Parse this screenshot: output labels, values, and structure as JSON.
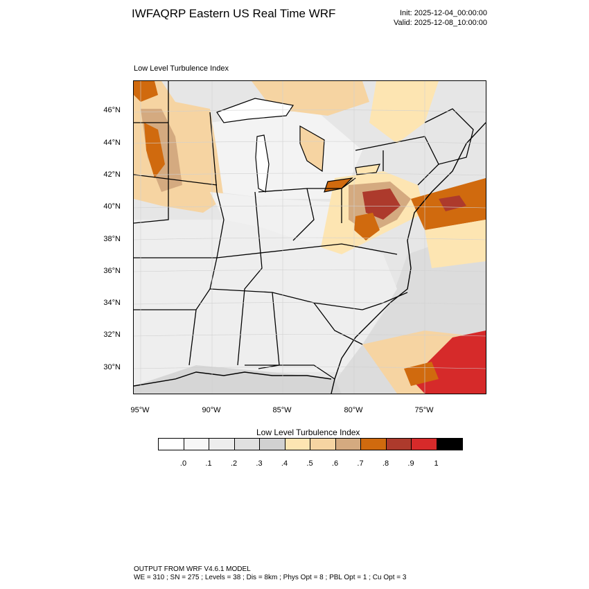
{
  "header": {
    "title": "IWFAQRP Eastern US Real Time WRF",
    "init": "Init: 2025-12-04_00:00:00",
    "valid": "Valid: 2025-12-08_10:00:00"
  },
  "map": {
    "subtitle": "Low Level Turbulence Index",
    "lat_labels": [
      "46°N",
      "44°N",
      "42°N",
      "40°N",
      "38°N",
      "36°N",
      "34°N",
      "32°N",
      "30°N"
    ],
    "lon_labels": [
      "95°W",
      "90°W",
      "85°W",
      "80°W",
      "75°W"
    ]
  },
  "colorbar": {
    "title": "Low Level Turbulence Index",
    "colors": [
      "#ffffff",
      "#f7f7f7",
      "#ededed",
      "#e0e0e0",
      "#d1d1d1",
      "#fde5b2",
      "#f6d4a2",
      "#d4aa80",
      "#d06a0e",
      "#ad3a2c",
      "#d62a2a",
      "#000000"
    ],
    "tick_labels": [
      ".0",
      ".1",
      ".2",
      ".3",
      ".4",
      ".5",
      ".6",
      ".7",
      ".8",
      ".9",
      "1"
    ]
  },
  "footer": {
    "line1": "OUTPUT FROM WRF V4.6.1 MODEL",
    "line2": "WE = 310 ; SN = 275 ; Levels = 38 ; Dis = 8km ; Phys Opt = 8 ; PBL Opt = 1 ; Cu Opt = 3"
  }
}
